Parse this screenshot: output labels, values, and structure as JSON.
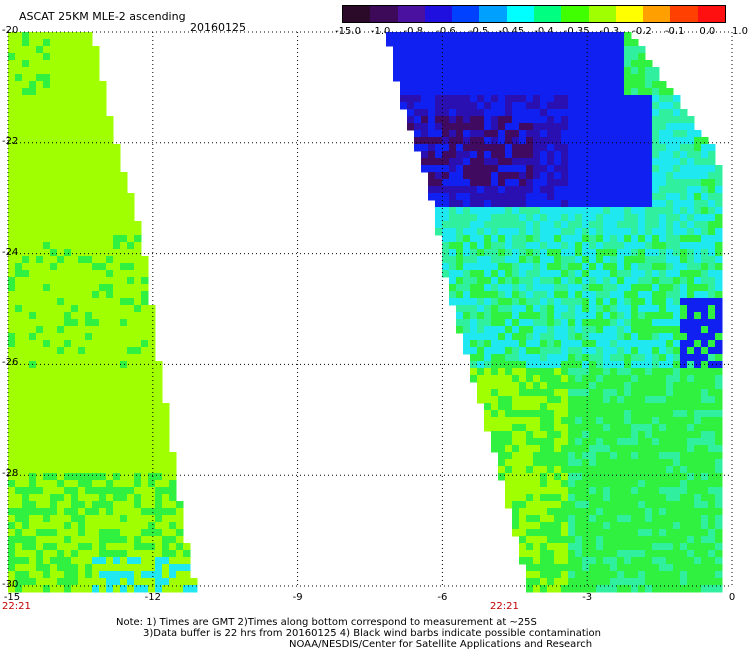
{
  "header": {
    "title": "ASCAT 25KM MLE-2 ascending",
    "date": "20160125"
  },
  "colorbar": {
    "labels": [
      "-15.0",
      "-1.0",
      "-0.8",
      "-0.6",
      "-0.5",
      "-0.45",
      "-0.4",
      "-0.35",
      "-0.3",
      "-0.2",
      "-0.1",
      "0.0",
      "1.0"
    ],
    "colors": [
      "#2a0a28",
      "#3d0a5a",
      "#4a10a0",
      "#2010e0",
      "#0040ff",
      "#00a0ff",
      "#00ffff",
      "#00ff80",
      "#40ff00",
      "#a0ff00",
      "#ffff00",
      "#ffa000",
      "#ff4000",
      "#ff1010"
    ]
  },
  "map": {
    "lon_range": [
      -15,
      0
    ],
    "lat_range": [
      -20,
      -30
    ],
    "x_ticks": [
      "-15",
      "-12",
      "-9",
      "-6",
      "-3",
      "0"
    ],
    "y_ticks": [
      "-20",
      "-22",
      "-24",
      "-26",
      "-28",
      "-30"
    ],
    "swath_times": [
      "22:21",
      "22:21"
    ],
    "palette": {
      "purple": "#400a60",
      "dark_blue": "#2a10b0",
      "blue": "#1020f0",
      "cyan": "#20e8f0",
      "teal": "#30f0a0",
      "green": "#30f040",
      "yellow_green": "#a0ff00"
    }
  },
  "notes": {
    "line1": "Note: 1) Times are GMT 2)Times along bottom correspond to measurement at ~25S",
    "line2": "3)Data buffer is 22 hrs from 20160125 4) Black wind barbs indicate possible contamination",
    "line3": "NOAA/NESDIS/Center for Satellite Applications and Research"
  }
}
